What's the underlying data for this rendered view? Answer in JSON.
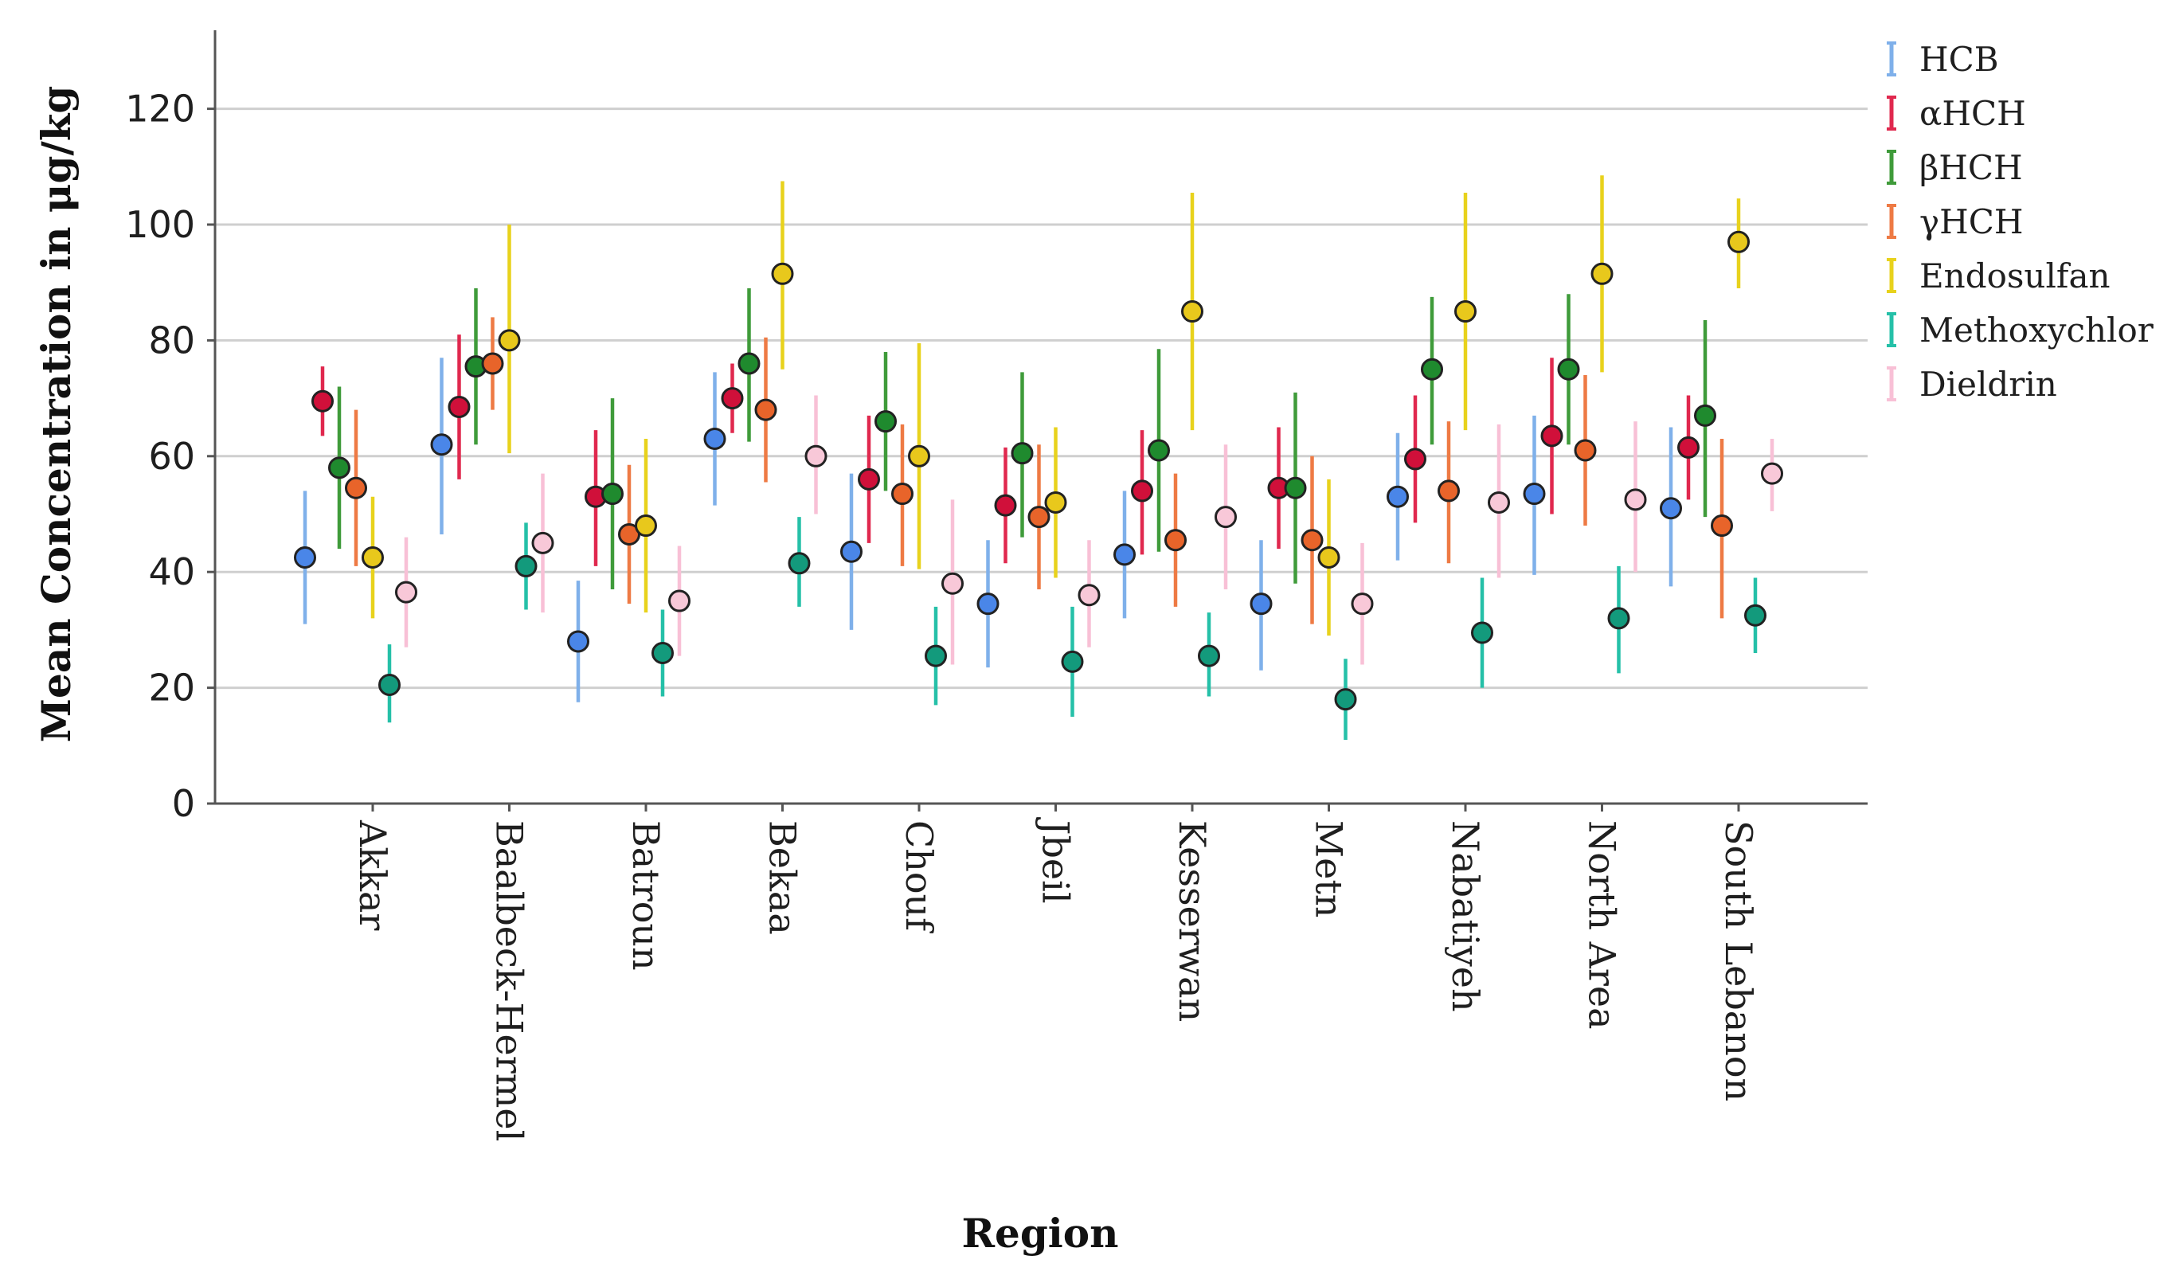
{
  "chart_data": {
    "type": "scatter",
    "subtype": "mean-with-error-bars",
    "title": "",
    "xlabel": "Region",
    "ylabel": "Mean Concentration in μg/kg",
    "ylim": [
      0,
      133
    ],
    "yticks": [
      0,
      20,
      40,
      60,
      80,
      100,
      120
    ],
    "grid": "horizontal",
    "legend_position": "top-right",
    "categories": [
      "Akkar",
      "Baalbeck-Hermel",
      "Batroun",
      "Bekaa",
      "Chouf",
      "Jbeil",
      "Kesserwan",
      "Metn",
      "Nabatiyeh",
      "North Area",
      "South Lebanon"
    ],
    "series": [
      {
        "name": "HCB",
        "color": "#4a86e8",
        "bar_color": "#7fb0ea",
        "mean": [
          42.5,
          62,
          28,
          63,
          43.5,
          34.5,
          43,
          34.5,
          53,
          53.5,
          51
        ],
        "lower": [
          31,
          46.5,
          17.5,
          51.5,
          30,
          23.5,
          32,
          23,
          42,
          39.5,
          37.5
        ],
        "upper": [
          54,
          77,
          38.5,
          74.5,
          57,
          45.5,
          54,
          45.5,
          64,
          67,
          65
        ]
      },
      {
        "name": "αHCH",
        "color": "#d0103a",
        "bar_color": "#e0284e",
        "mean": [
          69.5,
          68.5,
          53,
          70,
          56,
          51.5,
          54,
          54.5,
          59.5,
          63.5,
          61.5
        ],
        "lower": [
          63.5,
          56,
          41,
          64,
          45,
          41.5,
          43,
          44,
          48.5,
          50,
          52.5
        ],
        "upper": [
          75.5,
          81,
          64.5,
          76,
          67,
          61.5,
          64.5,
          65,
          70.5,
          77,
          70.5
        ]
      },
      {
        "name": "βHCH",
        "color": "#1f8a2e",
        "bar_color": "#3f9b3a",
        "mean": [
          58,
          75.5,
          53.5,
          76,
          66,
          60.5,
          61,
          54.5,
          75,
          75,
          67
        ],
        "lower": [
          44,
          62,
          37,
          62.5,
          54,
          46,
          43.5,
          38,
          62,
          62,
          49.5
        ],
        "upper": [
          72,
          89,
          70,
          89,
          78,
          74.5,
          78.5,
          71,
          87.5,
          88,
          83.5
        ]
      },
      {
        "name": "γHCH",
        "color": "#e8642a",
        "bar_color": "#ee7a44",
        "mean": [
          54.5,
          76,
          46.5,
          68,
          53.5,
          49.5,
          45.5,
          45.5,
          54,
          61,
          48
        ],
        "lower": [
          41,
          68,
          34.5,
          55.5,
          41,
          37,
          34,
          31,
          41.5,
          48,
          32
        ],
        "upper": [
          68,
          84,
          58.5,
          80.5,
          65.5,
          62,
          57,
          60,
          66,
          74,
          63
        ]
      },
      {
        "name": "Endosulfan",
        "color": "#e8c81c",
        "bar_color": "#e8d21c",
        "mean": [
          42.5,
          80,
          48,
          91.5,
          60,
          52,
          85,
          42.5,
          85,
          91.5,
          97
        ],
        "lower": [
          32,
          60.5,
          33,
          75,
          40.5,
          39,
          64.5,
          29,
          64.5,
          74.5,
          89
        ],
        "upper": [
          53,
          100,
          63,
          107.5,
          79.5,
          65,
          105.5,
          56,
          105.5,
          108.5,
          104.5
        ]
      },
      {
        "name": "Methoxychlor",
        "color": "#139a7c",
        "bar_color": "#25c0a8",
        "mean": [
          20.5,
          41,
          26,
          41.5,
          25.5,
          24.5,
          25.5,
          18,
          29.5,
          32,
          32.5
        ],
        "lower": [
          14,
          33.5,
          18.5,
          34,
          17,
          15,
          18.5,
          11,
          20,
          22.5,
          26
        ],
        "upper": [
          27.5,
          48.5,
          33.5,
          49.5,
          34,
          34,
          33,
          25,
          39,
          41,
          39
        ]
      },
      {
        "name": "Dieldrin",
        "color": "#f8c8d8",
        "bar_color": "#f8c0d6",
        "mean": [
          36.5,
          45,
          35,
          60,
          38,
          36,
          49.5,
          34.5,
          52,
          52.5,
          57
        ],
        "lower": [
          27,
          33,
          25.5,
          50,
          24,
          27,
          37,
          24,
          39,
          40,
          50.5
        ],
        "upper": [
          46,
          57,
          44.5,
          70.5,
          52.5,
          45.5,
          62,
          45,
          65.5,
          66,
          63
        ]
      }
    ]
  }
}
